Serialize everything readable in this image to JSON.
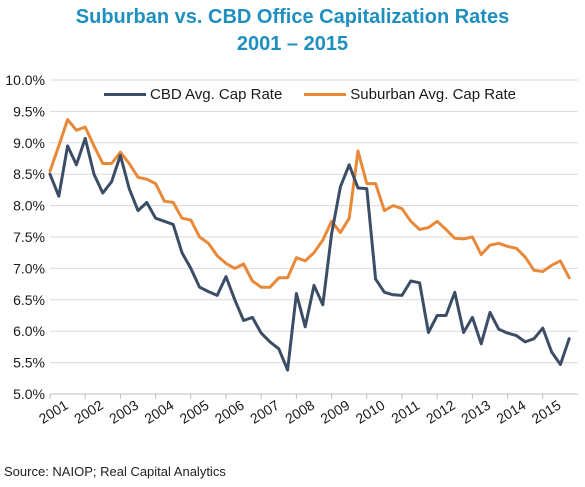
{
  "title": {
    "line1": "Suburban vs. CBD Office Capitalization Rates",
    "line2": "2001 – 2015"
  },
  "source": "Source: NAIOP; Real Capital Analytics",
  "colors": {
    "title": "#1f8fbf",
    "cbd": "#3b4e66",
    "suburban": "#e8893a",
    "grid": "#d9d9d9"
  },
  "chart_data": {
    "type": "line",
    "title": "Suburban vs. CBD Office Capitalization Rates 2001 – 2015",
    "xlabel": "",
    "ylabel": "",
    "xlim": [
      2001,
      2016
    ],
    "ylim": [
      5.0,
      10.0
    ],
    "grid": "horizontal",
    "legend_position": "top",
    "x_tick_labels": [
      "2001",
      "2002",
      "2003",
      "2004",
      "2005",
      "2006",
      "2007",
      "2008",
      "2009",
      "2010",
      "2011",
      "2012",
      "2013",
      "2014",
      "2015"
    ],
    "y_ticks": [
      5.0,
      5.5,
      6.0,
      6.5,
      7.0,
      7.5,
      8.0,
      8.5,
      9.0,
      9.5,
      10.0
    ],
    "y_tick_labels": [
      "5.0%",
      "5.5%",
      "6.0%",
      "6.5%",
      "7.0%",
      "7.5%",
      "8.0%",
      "8.5%",
      "9.0%",
      "9.5%",
      "10.0%"
    ],
    "series": [
      {
        "name": "CBD Avg. Cap Rate",
        "color": "#3b4e66",
        "points": [
          [
            2001.0,
            8.5
          ],
          [
            2001.25,
            8.15
          ],
          [
            2001.5,
            8.95
          ],
          [
            2001.75,
            8.65
          ],
          [
            2002.0,
            9.07
          ],
          [
            2002.25,
            8.5
          ],
          [
            2002.5,
            8.2
          ],
          [
            2002.75,
            8.38
          ],
          [
            2003.0,
            8.8
          ],
          [
            2003.25,
            8.27
          ],
          [
            2003.5,
            7.92
          ],
          [
            2003.75,
            8.05
          ],
          [
            2004.0,
            7.8
          ],
          [
            2004.25,
            7.75
          ],
          [
            2004.5,
            7.7
          ],
          [
            2004.75,
            7.25
          ],
          [
            2005.0,
            7.0
          ],
          [
            2005.25,
            6.7
          ],
          [
            2005.5,
            6.63
          ],
          [
            2005.75,
            6.57
          ],
          [
            2006.0,
            6.87
          ],
          [
            2006.25,
            6.5
          ],
          [
            2006.5,
            6.17
          ],
          [
            2006.75,
            6.22
          ],
          [
            2007.0,
            5.97
          ],
          [
            2007.25,
            5.83
          ],
          [
            2007.5,
            5.72
          ],
          [
            2007.75,
            5.38
          ],
          [
            2008.0,
            6.6
          ],
          [
            2008.25,
            6.07
          ],
          [
            2008.5,
            6.73
          ],
          [
            2008.75,
            6.42
          ],
          [
            2009.0,
            7.55
          ],
          [
            2009.25,
            8.3
          ],
          [
            2009.5,
            8.65
          ],
          [
            2009.75,
            8.28
          ],
          [
            2010.0,
            8.27
          ],
          [
            2010.25,
            6.83
          ],
          [
            2010.5,
            6.62
          ],
          [
            2010.75,
            6.58
          ],
          [
            2011.0,
            6.57
          ],
          [
            2011.25,
            6.8
          ],
          [
            2011.5,
            6.77
          ],
          [
            2011.75,
            5.98
          ],
          [
            2012.0,
            6.25
          ],
          [
            2012.25,
            6.25
          ],
          [
            2012.5,
            6.62
          ],
          [
            2012.75,
            5.98
          ],
          [
            2013.0,
            6.22
          ],
          [
            2013.25,
            5.8
          ],
          [
            2013.5,
            6.3
          ],
          [
            2013.75,
            6.03
          ],
          [
            2014.0,
            5.97
          ],
          [
            2014.25,
            5.93
          ],
          [
            2014.5,
            5.83
          ],
          [
            2014.75,
            5.88
          ],
          [
            2015.0,
            6.05
          ],
          [
            2015.25,
            5.67
          ],
          [
            2015.5,
            5.47
          ],
          [
            2015.75,
            5.88
          ]
        ]
      },
      {
        "name": "Suburban Avg. Cap Rate",
        "color": "#e8893a",
        "points": [
          [
            2001.0,
            8.55
          ],
          [
            2001.25,
            8.95
          ],
          [
            2001.5,
            9.37
          ],
          [
            2001.75,
            9.2
          ],
          [
            2002.0,
            9.25
          ],
          [
            2002.25,
            8.95
          ],
          [
            2002.5,
            8.67
          ],
          [
            2002.75,
            8.67
          ],
          [
            2003.0,
            8.85
          ],
          [
            2003.25,
            8.67
          ],
          [
            2003.5,
            8.45
          ],
          [
            2003.75,
            8.42
          ],
          [
            2004.0,
            8.35
          ],
          [
            2004.25,
            8.07
          ],
          [
            2004.5,
            8.05
          ],
          [
            2004.75,
            7.8
          ],
          [
            2005.0,
            7.77
          ],
          [
            2005.25,
            7.5
          ],
          [
            2005.5,
            7.4
          ],
          [
            2005.75,
            7.2
          ],
          [
            2006.0,
            7.08
          ],
          [
            2006.25,
            7.0
          ],
          [
            2006.5,
            7.07
          ],
          [
            2006.75,
            6.8
          ],
          [
            2007.0,
            6.7
          ],
          [
            2007.25,
            6.7
          ],
          [
            2007.5,
            6.85
          ],
          [
            2007.75,
            6.85
          ],
          [
            2008.0,
            7.17
          ],
          [
            2008.25,
            7.12
          ],
          [
            2008.5,
            7.25
          ],
          [
            2008.75,
            7.45
          ],
          [
            2009.0,
            7.75
          ],
          [
            2009.25,
            7.57
          ],
          [
            2009.5,
            7.8
          ],
          [
            2009.75,
            8.87
          ],
          [
            2010.0,
            8.35
          ],
          [
            2010.25,
            8.35
          ],
          [
            2010.5,
            7.92
          ],
          [
            2010.75,
            8.0
          ],
          [
            2011.0,
            7.95
          ],
          [
            2011.25,
            7.75
          ],
          [
            2011.5,
            7.62
          ],
          [
            2011.75,
            7.65
          ],
          [
            2012.0,
            7.75
          ],
          [
            2012.25,
            7.62
          ],
          [
            2012.5,
            7.48
          ],
          [
            2012.75,
            7.47
          ],
          [
            2013.0,
            7.5
          ],
          [
            2013.25,
            7.22
          ],
          [
            2013.5,
            7.37
          ],
          [
            2013.75,
            7.4
          ],
          [
            2014.0,
            7.35
          ],
          [
            2014.25,
            7.32
          ],
          [
            2014.5,
            7.18
          ],
          [
            2014.75,
            6.97
          ],
          [
            2015.0,
            6.95
          ],
          [
            2015.25,
            7.05
          ],
          [
            2015.5,
            7.12
          ],
          [
            2015.75,
            6.85
          ]
        ]
      }
    ]
  }
}
